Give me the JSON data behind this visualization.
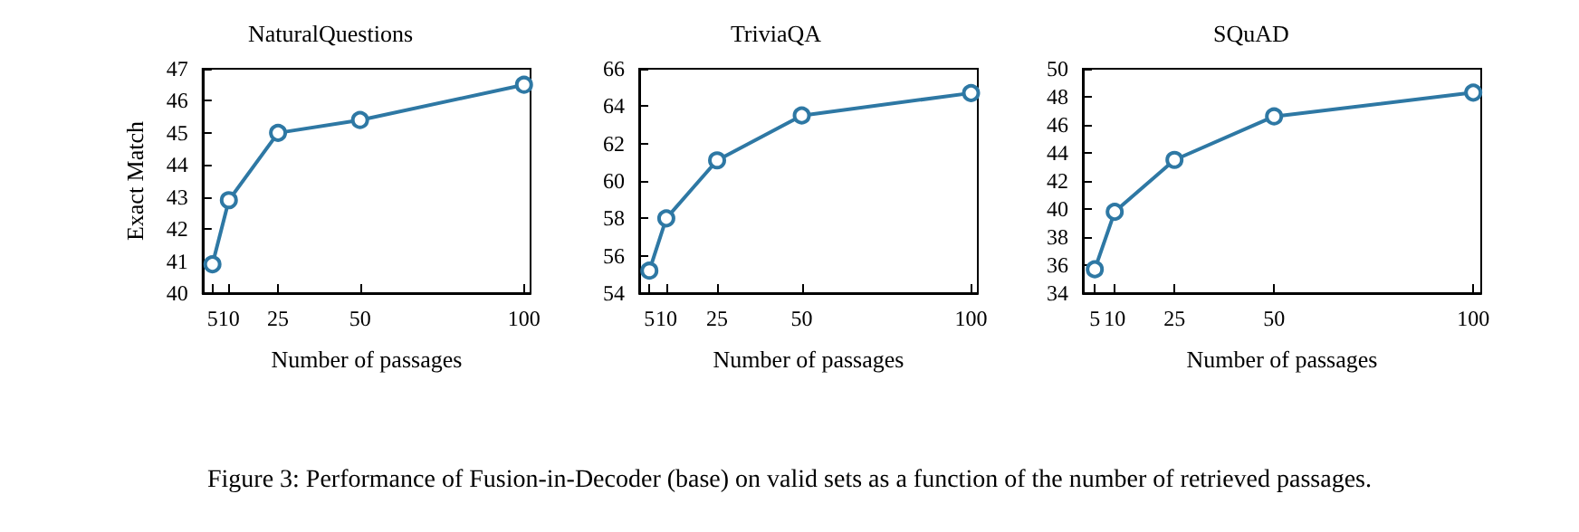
{
  "chart_data": [
    {
      "type": "line",
      "title": "NaturalQuestions",
      "xlabel": "Number of passages",
      "ylabel": "Exact Match",
      "x": [
        5,
        10,
        25,
        50,
        100
      ],
      "series": [
        {
          "color": "#2e78a4",
          "values": [
            40.9,
            42.9,
            45.0,
            45.4,
            46.5
          ]
        }
      ],
      "xlim": [
        2,
        102
      ],
      "xticks": [
        5,
        10,
        25,
        50,
        100
      ],
      "ylim": [
        40,
        47
      ],
      "yticks": [
        40,
        41,
        42,
        43,
        44,
        45,
        46,
        47
      ],
      "marker": "circle",
      "grid": false
    },
    {
      "type": "line",
      "title": "TriviaQA",
      "xlabel": "Number of passages",
      "x": [
        5,
        10,
        25,
        50,
        100
      ],
      "series": [
        {
          "color": "#2e78a4",
          "values": [
            55.2,
            58.0,
            61.1,
            63.5,
            64.7
          ]
        }
      ],
      "xlim": [
        2,
        102
      ],
      "xticks": [
        5,
        10,
        25,
        50,
        100
      ],
      "ylim": [
        54,
        66
      ],
      "yticks": [
        54,
        56,
        58,
        60,
        62,
        64,
        66
      ],
      "marker": "circle",
      "grid": false
    },
    {
      "type": "line",
      "title": "SQuAD",
      "xlabel": "Number of passages",
      "x": [
        5,
        10,
        25,
        50,
        100
      ],
      "series": [
        {
          "color": "#2e78a4",
          "values": [
            35.7,
            39.8,
            43.5,
            46.6,
            48.3
          ]
        }
      ],
      "xlim": [
        2,
        102
      ],
      "xticks": [
        5,
        10,
        25,
        50,
        100
      ],
      "ylim": [
        34,
        50
      ],
      "yticks": [
        34,
        36,
        38,
        40,
        42,
        44,
        46,
        48,
        50
      ],
      "marker": "circle",
      "grid": false,
      "annotations": [
        "Figure 3: Performance of Fusion-in-Decoder (base) on valid sets as a function of the number of retrieved passages."
      ]
    }
  ]
}
